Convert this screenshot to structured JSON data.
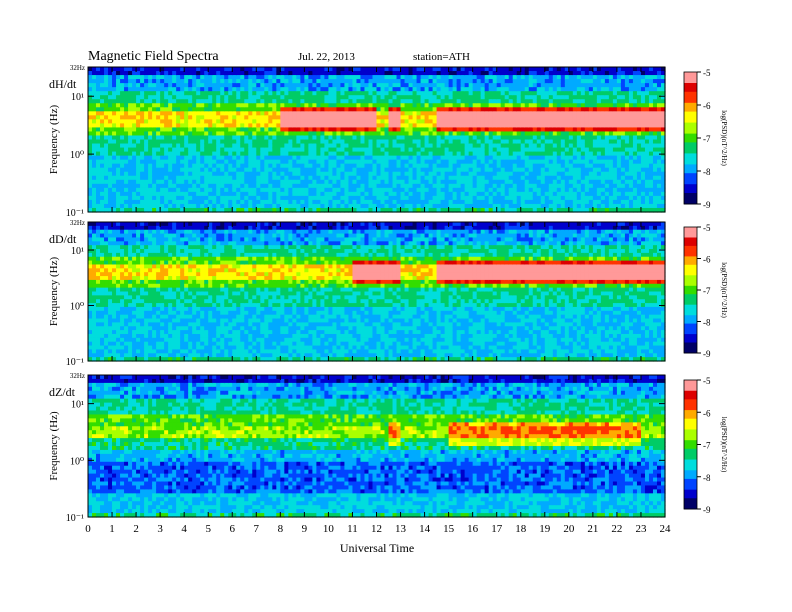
{
  "header": {
    "title": "Magnetic  Field  Spectra",
    "date": "Jul.  22, 2013",
    "station": "station=ATH"
  },
  "colormap": [
    "#000066",
    "#0000cc",
    "#0044ff",
    "#00aaff",
    "#00dddd",
    "#00cc66",
    "#33dd00",
    "#aaff00",
    "#ffff00",
    "#ffaa00",
    "#ff3300",
    "#dd0000",
    "#ff9999"
  ],
  "chart_data": {
    "type": "heatmap",
    "xlabel": "Universal Time",
    "x_ticks": [
      "0",
      "1",
      "2",
      "3",
      "4",
      "5",
      "6",
      "7",
      "8",
      "9",
      "10",
      "11",
      "12",
      "13",
      "14",
      "15",
      "16",
      "17",
      "18",
      "19",
      "20",
      "21",
      "22",
      "23",
      "24"
    ],
    "xlim": [
      0,
      24
    ],
    "ylabel": "Frequency  (Hz)",
    "y_scale": "log",
    "ylim": [
      0.1,
      32
    ],
    "top_label": "32Hz",
    "colorbar": {
      "label": "log(PSD)(nT^2/Hz)",
      "range": [
        -9,
        -5
      ],
      "ticks": [
        "-5",
        "-6",
        "-7",
        "-8",
        "-9"
      ]
    },
    "panels": [
      {
        "label": "dH/dt",
        "ticks": [
          "10¹",
          "10⁰",
          "10⁻¹"
        ],
        "bright_band_hz": 4,
        "activity_intervals_ut": [
          [
            8,
            12
          ],
          [
            12.5,
            13
          ],
          [
            14.5,
            24
          ]
        ],
        "notes": "strong red emission near 4 Hz after 8 UT"
      },
      {
        "label": "dD/dt",
        "ticks": [
          "10¹",
          "10⁰",
          "10⁻¹"
        ],
        "bright_band_hz": 4,
        "activity_intervals_ut": [
          [
            11,
            13
          ],
          [
            14.5,
            24
          ]
        ],
        "notes": "strong red emission near 4 Hz after 11 UT"
      },
      {
        "label": "dZ/dt",
        "ticks": [
          "10¹",
          "10⁰",
          "10⁻¹"
        ],
        "bright_band_hz": 3,
        "activity_intervals_ut": [
          [
            12.5,
            13
          ],
          [
            15,
            23
          ]
        ],
        "notes": "weaker emission, orange near 3 Hz"
      }
    ]
  }
}
